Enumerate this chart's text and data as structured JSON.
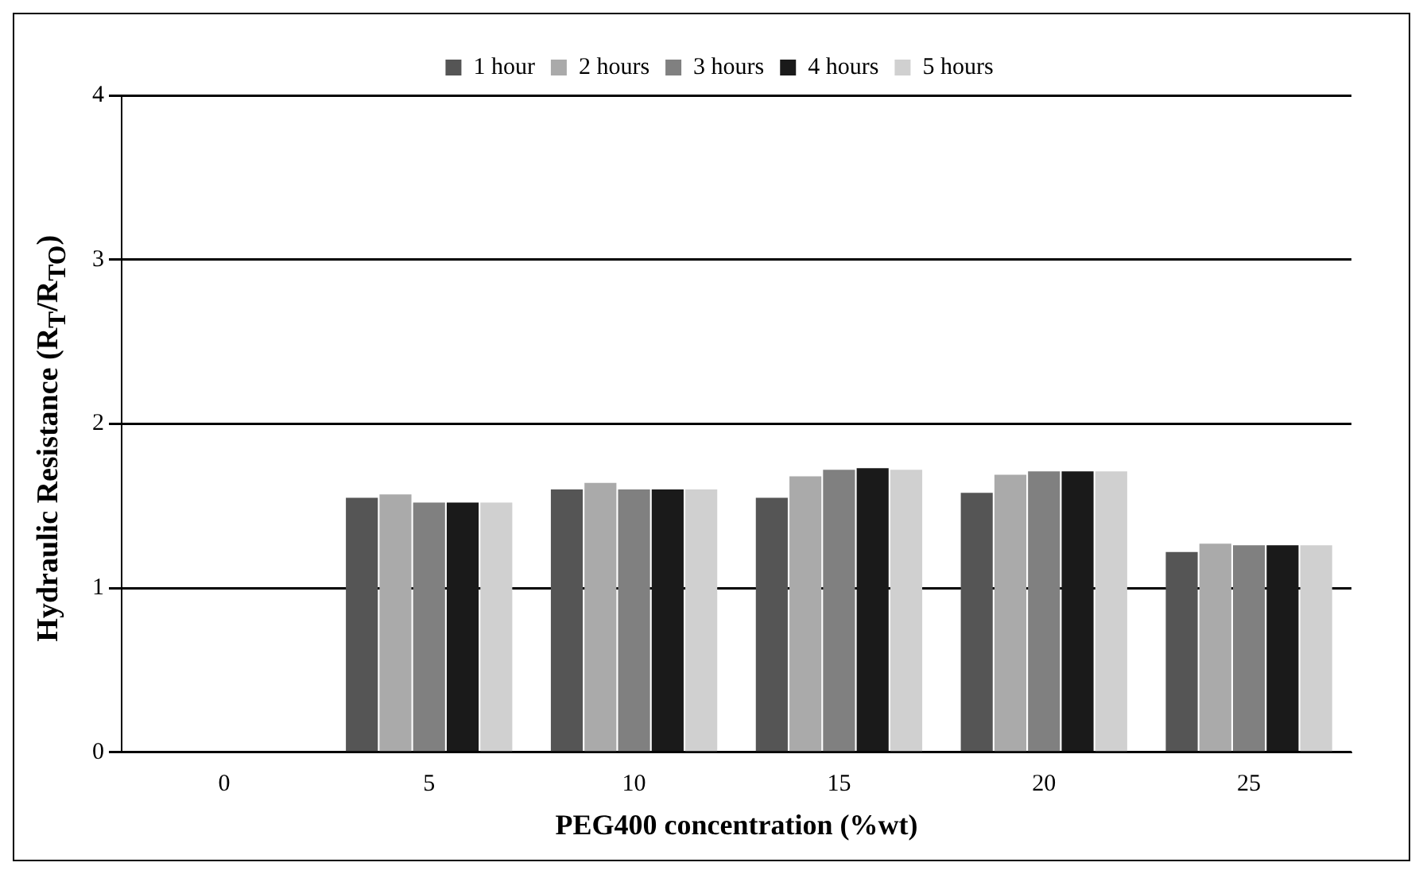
{
  "chart_data": {
    "type": "bar",
    "xlabel": "PEG400 concentration (%wt)",
    "ylabel": "Hydraulic Resistance (R$_{T}$/R$_{TO}$)",
    "categories": [
      "0",
      "5",
      "10",
      "15",
      "20",
      "25"
    ],
    "series": [
      {
        "name": "1 hour",
        "color": "#555555",
        "values": [
          0,
          1.55,
          1.6,
          1.55,
          1.58,
          1.22
        ]
      },
      {
        "name": "2 hours",
        "color": "#aaaaaa",
        "values": [
          0,
          1.57,
          1.64,
          1.68,
          1.69,
          1.27
        ]
      },
      {
        "name": "3 hours",
        "color": "#808080",
        "values": [
          0,
          1.52,
          1.6,
          1.72,
          1.71,
          1.26
        ]
      },
      {
        "name": "4 hours",
        "color": "#1a1a1a",
        "values": [
          0,
          1.52,
          1.6,
          1.73,
          1.71,
          1.26
        ]
      },
      {
        "name": "5 hours",
        "color": "#d0d0d0",
        "values": [
          0,
          1.52,
          1.6,
          1.72,
          1.71,
          1.26
        ]
      }
    ],
    "ylim": [
      0,
      4
    ],
    "yticks": [
      0,
      1,
      2,
      3,
      4
    ],
    "grid": "y",
    "legend": "top"
  }
}
